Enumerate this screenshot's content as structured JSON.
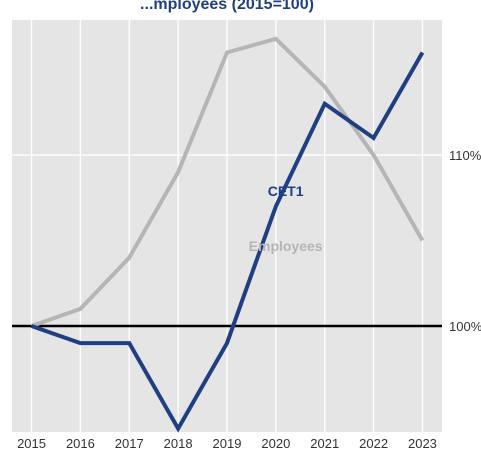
{
  "chart_data": {
    "type": "line",
    "title": "...mployees (2015=100)",
    "x": [
      2015,
      2016,
      2017,
      2018,
      2019,
      2020,
      2021,
      2022,
      2023
    ],
    "xlim": [
      2014.6,
      2023.4
    ],
    "ylim": [
      93.8,
      117.9
    ],
    "y_ticks": [
      {
        "value": 100,
        "label": "100%"
      },
      {
        "value": 110,
        "label": "110%"
      }
    ],
    "reference_line": 100,
    "grid": true,
    "series": [
      {
        "name": "Employees",
        "color": "#b5b5b5",
        "values": [
          100,
          101,
          104,
          109,
          116,
          116.8,
          114,
          110,
          105
        ]
      },
      {
        "name": "CET1",
        "color": "#1f3f82",
        "values": [
          100,
          99,
          99,
          94,
          99,
          107,
          113,
          111,
          116
        ]
      }
    ],
    "colors": {
      "plot_background": "#e5e5e5",
      "grid": "#ffffff",
      "reference": "#000000"
    }
  }
}
